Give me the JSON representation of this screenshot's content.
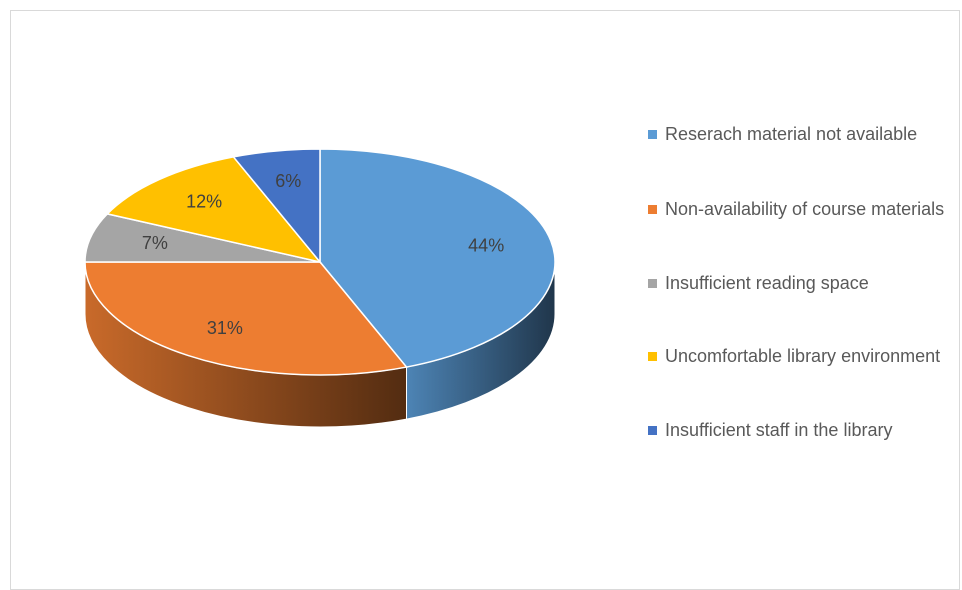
{
  "chart_data": {
    "type": "pie",
    "categories": [
      "Reserach material not available",
      "Non-availability of course materials",
      "Insufficient reading space",
      "Uncomfortable library environment",
      "Insufficient staff in the library"
    ],
    "values": [
      44,
      31,
      7,
      12,
      6
    ],
    "value_labels": [
      "44%",
      "31%",
      "7%",
      "12%",
      "6%"
    ],
    "colors": [
      "#5b9bd5",
      "#ed7d31",
      "#a5a5a5",
      "#ffc000",
      "#4472c4"
    ],
    "legend": "right"
  }
}
